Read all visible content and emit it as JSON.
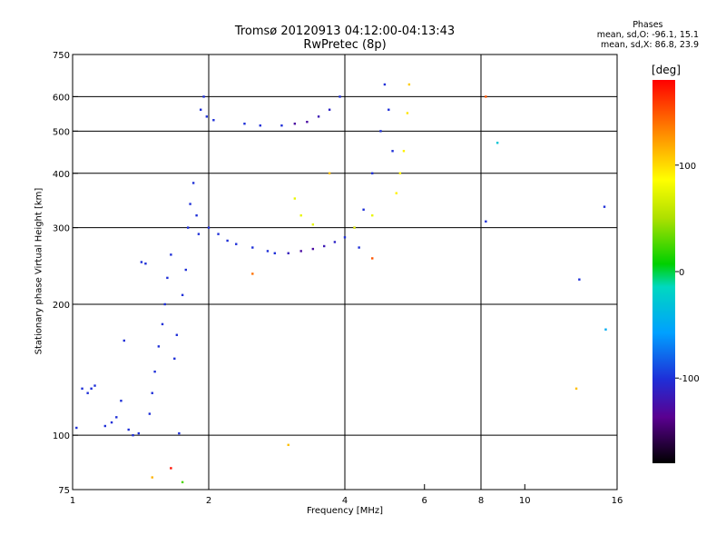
{
  "header": {
    "title_line1": "Tromsø 20120913 04:12:00-04:13:43",
    "title_line2": "RwPretec (8p)"
  },
  "stats": {
    "heading": "Phases",
    "o_line": "mean, sd,O: -96.1, 15.1",
    "x_line": "mean, sd,X:  86.8, 23.9"
  },
  "colorbar": {
    "label": "[deg]",
    "ticks": [
      "100",
      "0",
      "-100"
    ],
    "tick_values": [
      100,
      0,
      -100
    ],
    "range": [
      -180,
      180
    ]
  },
  "chart_data": {
    "type": "scatter",
    "xlabel": "Frequency [MHz]",
    "ylabel": "Stationary phase Virtual Height [km]",
    "xscale": "log",
    "yscale": "log",
    "xlim": [
      1,
      16
    ],
    "ylim": [
      75,
      750
    ],
    "xticks": [
      1,
      2,
      4,
      6,
      8,
      10,
      16
    ],
    "xtick_labels": [
      "1",
      "2",
      "4",
      "6",
      "8",
      "10",
      "16"
    ],
    "yticks": [
      75,
      100,
      200,
      300,
      400,
      500,
      600,
      750
    ],
    "ytick_labels": [
      "75",
      "100",
      "200",
      "300",
      "400",
      "500",
      "600",
      "750"
    ],
    "grid_x": [
      2,
      4,
      8
    ],
    "grid_y": [
      100,
      200,
      300,
      400,
      500,
      600
    ],
    "grid": true,
    "points": [
      {
        "x": 1.02,
        "y": 104,
        "phase": -100
      },
      {
        "x": 1.05,
        "y": 128,
        "phase": -100
      },
      {
        "x": 1.08,
        "y": 125,
        "phase": -100
      },
      {
        "x": 1.1,
        "y": 128,
        "phase": -100
      },
      {
        "x": 1.12,
        "y": 130,
        "phase": -100
      },
      {
        "x": 1.18,
        "y": 105,
        "phase": -100
      },
      {
        "x": 1.22,
        "y": 107,
        "phase": -100
      },
      {
        "x": 1.25,
        "y": 110,
        "phase": -100
      },
      {
        "x": 1.28,
        "y": 120,
        "phase": -100
      },
      {
        "x": 1.3,
        "y": 165,
        "phase": -100
      },
      {
        "x": 1.33,
        "y": 103,
        "phase": -100
      },
      {
        "x": 1.36,
        "y": 100,
        "phase": -100
      },
      {
        "x": 1.4,
        "y": 101,
        "phase": -100
      },
      {
        "x": 1.42,
        "y": 250,
        "phase": -100
      },
      {
        "x": 1.45,
        "y": 248,
        "phase": -100
      },
      {
        "x": 1.48,
        "y": 112,
        "phase": -100
      },
      {
        "x": 1.5,
        "y": 125,
        "phase": -100
      },
      {
        "x": 1.52,
        "y": 140,
        "phase": -100
      },
      {
        "x": 1.55,
        "y": 160,
        "phase": -100
      },
      {
        "x": 1.58,
        "y": 180,
        "phase": -100
      },
      {
        "x": 1.6,
        "y": 200,
        "phase": -100
      },
      {
        "x": 1.62,
        "y": 230,
        "phase": -100
      },
      {
        "x": 1.65,
        "y": 260,
        "phase": -100
      },
      {
        "x": 1.68,
        "y": 150,
        "phase": -100
      },
      {
        "x": 1.7,
        "y": 170,
        "phase": -100
      },
      {
        "x": 1.72,
        "y": 101,
        "phase": -100
      },
      {
        "x": 1.75,
        "y": 210,
        "phase": -100
      },
      {
        "x": 1.78,
        "y": 240,
        "phase": -100
      },
      {
        "x": 1.8,
        "y": 300,
        "phase": -100
      },
      {
        "x": 1.82,
        "y": 340,
        "phase": -100
      },
      {
        "x": 1.85,
        "y": 380,
        "phase": -100
      },
      {
        "x": 1.88,
        "y": 320,
        "phase": -100
      },
      {
        "x": 1.9,
        "y": 290,
        "phase": -100
      },
      {
        "x": 1.92,
        "y": 560,
        "phase": -100
      },
      {
        "x": 1.95,
        "y": 600,
        "phase": -100
      },
      {
        "x": 1.98,
        "y": 540,
        "phase": -100
      },
      {
        "x": 2.0,
        "y": 300,
        "phase": -100
      },
      {
        "x": 2.05,
        "y": 530,
        "phase": -100
      },
      {
        "x": 2.1,
        "y": 290,
        "phase": -100
      },
      {
        "x": 2.2,
        "y": 280,
        "phase": -100
      },
      {
        "x": 2.3,
        "y": 275,
        "phase": -100
      },
      {
        "x": 2.4,
        "y": 520,
        "phase": -100
      },
      {
        "x": 2.5,
        "y": 270,
        "phase": -100
      },
      {
        "x": 2.6,
        "y": 515,
        "phase": -100
      },
      {
        "x": 2.7,
        "y": 265,
        "phase": -100
      },
      {
        "x": 2.8,
        "y": 262,
        "phase": -100
      },
      {
        "x": 2.9,
        "y": 515,
        "phase": -100
      },
      {
        "x": 3.0,
        "y": 262,
        "phase": -115
      },
      {
        "x": 3.1,
        "y": 520,
        "phase": -130
      },
      {
        "x": 3.2,
        "y": 265,
        "phase": -130
      },
      {
        "x": 3.3,
        "y": 525,
        "phase": -130
      },
      {
        "x": 3.4,
        "y": 268,
        "phase": -130
      },
      {
        "x": 3.5,
        "y": 540,
        "phase": -120
      },
      {
        "x": 3.6,
        "y": 272,
        "phase": -120
      },
      {
        "x": 3.7,
        "y": 560,
        "phase": -110
      },
      {
        "x": 3.8,
        "y": 278,
        "phase": -110
      },
      {
        "x": 3.9,
        "y": 600,
        "phase": -100
      },
      {
        "x": 4.0,
        "y": 285,
        "phase": -100
      },
      {
        "x": 4.2,
        "y": 300,
        "phase": -100
      },
      {
        "x": 4.4,
        "y": 330,
        "phase": -100
      },
      {
        "x": 4.6,
        "y": 400,
        "phase": -100
      },
      {
        "x": 4.8,
        "y": 500,
        "phase": -100
      },
      {
        "x": 4.9,
        "y": 640,
        "phase": -100
      },
      {
        "x": 5.0,
        "y": 560,
        "phase": -100
      },
      {
        "x": 5.1,
        "y": 450,
        "phase": -100
      },
      {
        "x": 3.1,
        "y": 350,
        "phase": 75
      },
      {
        "x": 3.2,
        "y": 320,
        "phase": 75
      },
      {
        "x": 3.4,
        "y": 305,
        "phase": 75
      },
      {
        "x": 4.2,
        "y": 300,
        "phase": 80
      },
      {
        "x": 4.6,
        "y": 320,
        "phase": 75
      },
      {
        "x": 5.2,
        "y": 360,
        "phase": 90
      },
      {
        "x": 5.4,
        "y": 450,
        "phase": 90
      },
      {
        "x": 5.5,
        "y": 550,
        "phase": 95
      },
      {
        "x": 5.55,
        "y": 640,
        "phase": 105
      },
      {
        "x": 5.3,
        "y": 400,
        "phase": 90
      },
      {
        "x": 2.5,
        "y": 235,
        "phase": 140
      },
      {
        "x": 3.0,
        "y": 95,
        "phase": 110
      },
      {
        "x": 3.7,
        "y": 400,
        "phase": 110
      },
      {
        "x": 1.5,
        "y": 80,
        "phase": 115
      },
      {
        "x": 1.65,
        "y": 84,
        "phase": 175
      },
      {
        "x": 1.75,
        "y": 78,
        "phase": 25
      },
      {
        "x": 8.2,
        "y": 600,
        "phase": 150
      },
      {
        "x": 8.7,
        "y": 470,
        "phase": -30
      },
      {
        "x": 8.2,
        "y": 310,
        "phase": -100
      },
      {
        "x": 13.2,
        "y": 228,
        "phase": -100
      },
      {
        "x": 15.1,
        "y": 175,
        "phase": -50
      },
      {
        "x": 15.0,
        "y": 335,
        "phase": -100
      },
      {
        "x": 13.0,
        "y": 128,
        "phase": 110
      },
      {
        "x": 4.3,
        "y": 270,
        "phase": -100
      },
      {
        "x": 4.6,
        "y": 255,
        "phase": 150
      }
    ]
  }
}
